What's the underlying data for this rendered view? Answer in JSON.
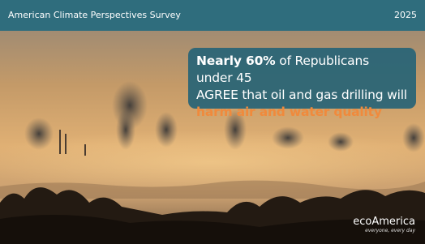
{
  "header": {
    "title": "American Climate Perspectives Survey",
    "year": "2025"
  },
  "callout": {
    "highlight": "Nearly 60%",
    "line1_rest": "of Republicans under 45",
    "line2": "AGREE that oil and gas drilling will",
    "emphasis": "harm air and water quality"
  },
  "logo": {
    "name": "ecoAmerica",
    "tagline": "everyone, every day"
  }
}
